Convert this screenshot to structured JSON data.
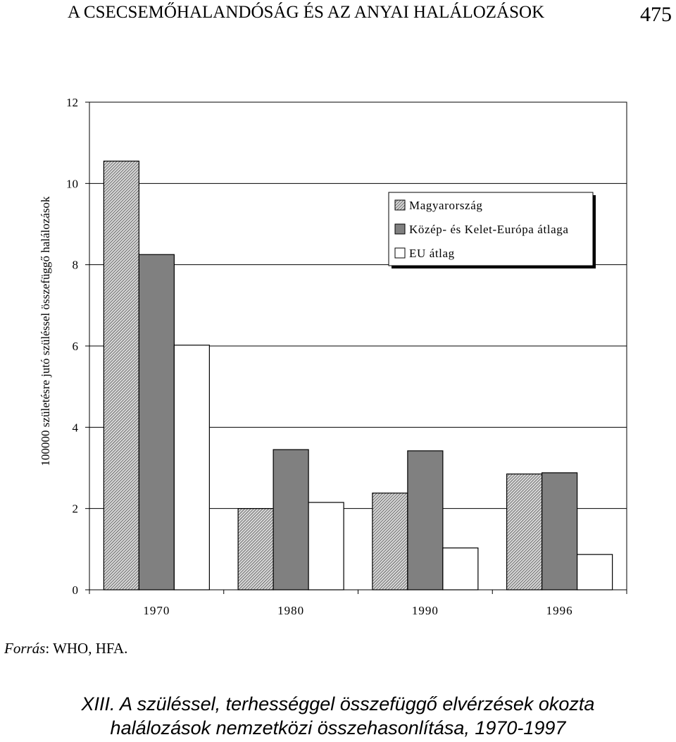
{
  "header": {
    "title": "A CSECSEMŐHALANDÓSÁG ÉS AZ ANYAI HALÁLOZÁSOK",
    "page_number": "475"
  },
  "source": {
    "label": "Forrás",
    "text": ": WHO, HFA."
  },
  "caption": {
    "line1": "XIII. A szüléssel, terhességgel összefüggő elvérzések okozta",
    "line2": "halálozások nemzetközi összehasonlítása, 1970-1997"
  },
  "chart_data": {
    "type": "bar",
    "title": "",
    "xlabel": "",
    "ylabel": "100000 születésre jutó szüléssel összefüggő halálozások",
    "ylim": [
      0,
      12
    ],
    "yticks": [
      0,
      2,
      4,
      6,
      8,
      10,
      12
    ],
    "categories": [
      "1970",
      "1980",
      "1990",
      "1996"
    ],
    "series": [
      {
        "name": "Magyarország",
        "values": [
          10.55,
          2.0,
          2.38,
          2.85
        ],
        "fill": "hatch"
      },
      {
        "name": "Közép- és Kelet-Európa átlaga",
        "values": [
          8.25,
          3.45,
          3.42,
          2.88
        ],
        "fill": "#808080"
      },
      {
        "name": "EU átlag",
        "values": [
          6.02,
          2.15,
          1.03,
          0.87
        ],
        "fill": "#ffffff"
      }
    ],
    "grid": true,
    "legend_position": "top-right"
  }
}
